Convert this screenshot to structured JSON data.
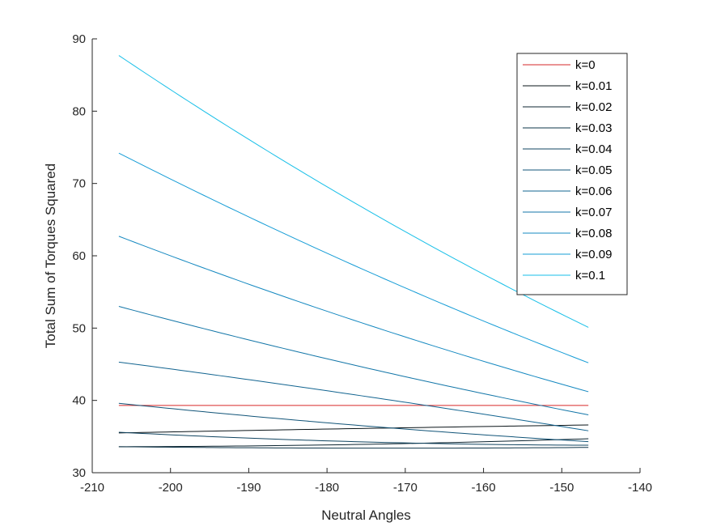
{
  "chart_data": {
    "type": "line",
    "title": "",
    "xlabel": "Neutral Angles",
    "ylabel": "Total Sum of Torques Squared",
    "xlim": [
      -210,
      -140
    ],
    "ylim": [
      30,
      90
    ],
    "xticks": [
      -210,
      -200,
      -190,
      -180,
      -170,
      -160,
      -150,
      -140
    ],
    "yticks": [
      30,
      40,
      50,
      60,
      70,
      80,
      90
    ],
    "xtick_labels": [
      "-210",
      "-200",
      "-190",
      "-180",
      "-170",
      "-160",
      "-150",
      "-140"
    ],
    "ytick_labels": [
      "30",
      "40",
      "50",
      "60",
      "70",
      "80",
      "90"
    ],
    "grid": false,
    "legend_position": "top-right",
    "x": [
      -206.6,
      -146.6
    ],
    "series": [
      {
        "name": "k=0",
        "color": "#d62728",
        "values": [
          [
            -206.6,
            39.3
          ],
          [
            -176.6,
            39.3
          ],
          [
            -146.6,
            39.3
          ]
        ]
      },
      {
        "name": "k=0.01",
        "color": "#0a1418",
        "values": [
          [
            -206.6,
            35.5
          ],
          [
            -176.6,
            36.1
          ],
          [
            -146.6,
            36.6
          ]
        ]
      },
      {
        "name": "k=0.02",
        "color": "#0c2430",
        "values": [
          [
            -206.6,
            33.6
          ],
          [
            -176.6,
            33.9
          ],
          [
            -146.6,
            34.7
          ]
        ]
      },
      {
        "name": "k=0.03",
        "color": "#0e3448",
        "values": [
          [
            -206.6,
            33.6
          ],
          [
            -176.6,
            33.4
          ],
          [
            -146.6,
            33.5
          ]
        ]
      },
      {
        "name": "k=0.04",
        "color": "#104460",
        "values": [
          [
            -206.6,
            35.6
          ],
          [
            -176.6,
            34.3
          ],
          [
            -146.6,
            33.8
          ]
        ]
      },
      {
        "name": "k=0.05",
        "color": "#115478",
        "values": [
          [
            -206.6,
            39.6
          ],
          [
            -176.6,
            36.6
          ],
          [
            -146.6,
            34.3
          ]
        ]
      },
      {
        "name": "k=0.06",
        "color": "#126490",
        "values": [
          [
            -206.6,
            45.3
          ],
          [
            -176.6,
            40.8
          ],
          [
            -146.6,
            35.8
          ]
        ]
      },
      {
        "name": "k=0.07",
        "color": "#1376a8",
        "values": [
          [
            -206.6,
            53.0
          ],
          [
            -176.6,
            44.9
          ],
          [
            -146.6,
            38.0
          ]
        ]
      },
      {
        "name": "k=0.08",
        "color": "#1488c0",
        "values": [
          [
            -206.6,
            62.7
          ],
          [
            -176.6,
            51.1
          ],
          [
            -146.6,
            41.2
          ]
        ]
      },
      {
        "name": "k=0.09",
        "color": "#159cd6",
        "values": [
          [
            -206.6,
            74.2
          ],
          [
            -176.6,
            58.7
          ],
          [
            -146.6,
            45.2
          ]
        ]
      },
      {
        "name": "k=0.1",
        "color": "#17bfe8",
        "values": [
          [
            -206.6,
            87.7
          ],
          [
            -176.6,
            67.4
          ],
          [
            -146.6,
            50.1
          ]
        ]
      }
    ]
  }
}
